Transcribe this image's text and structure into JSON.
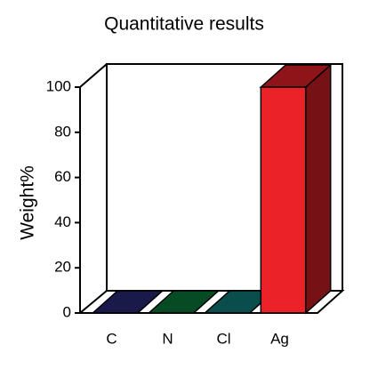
{
  "chart_data": {
    "type": "bar3d",
    "title": "Quantitative results",
    "y_label": "Weight%",
    "categories": [
      "C",
      "N",
      "Cl",
      "Ag"
    ],
    "values": [
      0,
      0,
      0,
      100
    ],
    "colors": [
      "#2b2b7c",
      "#0b7d3e",
      "#0f8080",
      "#ec2229"
    ],
    "ylim": [
      0,
      100
    ],
    "yticks": [
      0,
      20,
      40,
      60,
      80,
      100
    ],
    "grid": false
  }
}
